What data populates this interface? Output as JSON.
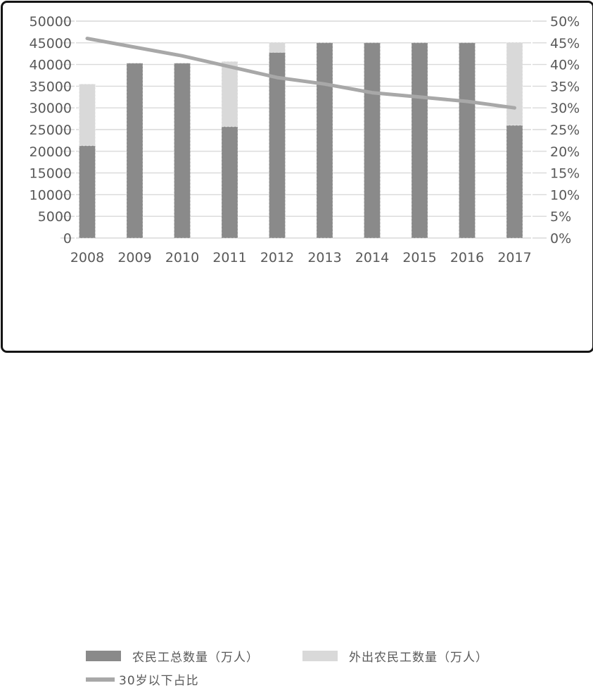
{
  "colors": {
    "bar_dark": "#8a8a8a",
    "bar_light": "#d9d9d9",
    "line": "#a8a8a8",
    "grid": "#d9d9d9",
    "axis_text": "#595959",
    "frame_border": "#141414",
    "background": "#ffffff"
  },
  "chart_data": {
    "type": "combo-stacked-bar-line",
    "title": "",
    "categories": [
      "2008",
      "2009",
      "2010",
      "2011",
      "2012",
      "2013",
      "2014",
      "2015",
      "2016",
      "2017"
    ],
    "series": [
      {
        "name": "农民工总数量（万人）",
        "type": "bar",
        "stack_role": "base",
        "axis": "left",
        "color": "#8a8a8a",
        "values": [
          21300,
          40300,
          40300,
          25700,
          42800,
          45000,
          45000,
          45000,
          45000,
          26000
        ]
      },
      {
        "name": "外出农民工数量（万人）",
        "type": "bar",
        "stack_role": "top-segment",
        "axis": "left",
        "color": "#d9d9d9",
        "values": [
          14200,
          0,
          0,
          15000,
          2300,
          0,
          0,
          0,
          0,
          19100
        ],
        "stack_top_totals": [
          35500,
          40300,
          40300,
          40700,
          45100,
          45000,
          45000,
          45000,
          45000,
          45100
        ]
      },
      {
        "name": "30岁以下占比",
        "type": "line",
        "axis": "right",
        "color": "#a8a8a8",
        "values_percent": [
          46,
          44,
          42,
          39.5,
          37,
          35.5,
          33.5,
          32.5,
          31.5,
          30
        ]
      }
    ],
    "left_axis": {
      "min": 0,
      "max": 50000,
      "step": 5000,
      "tick_labels": [
        "0",
        "5000",
        "10000",
        "15000",
        "20000",
        "25000",
        "30000",
        "35000",
        "40000",
        "45000",
        "50000"
      ]
    },
    "right_axis": {
      "min": 0,
      "max": 50,
      "step": 5,
      "tick_labels": [
        "0%",
        "5%",
        "10%",
        "15%",
        "20%",
        "25%",
        "30%",
        "35%",
        "40%",
        "45%",
        "50%"
      ]
    },
    "grid": true,
    "legend_position": "bottom-left"
  }
}
